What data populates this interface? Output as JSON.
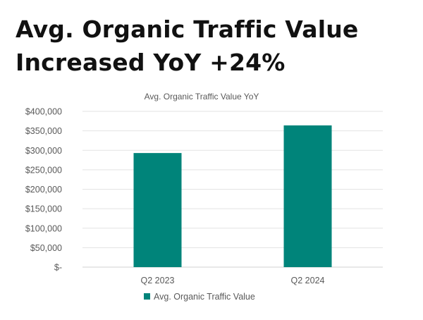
{
  "headline": {
    "line1": "Avg. Organic Traffic Value",
    "line2": "Increased YoY +24%"
  },
  "chart_data": {
    "type": "bar",
    "title": "Avg. Organic Traffic Value YoY",
    "categories": [
      "Q2 2023",
      "Q2 2024"
    ],
    "series": [
      {
        "name": "Avg. Organic Traffic Value",
        "values": [
          293000,
          364000
        ],
        "color": "#00847A"
      }
    ],
    "y_ticks": [
      0,
      50000,
      100000,
      150000,
      200000,
      250000,
      300000,
      350000,
      400000
    ],
    "y_tick_labels": [
      "$-",
      "$50,000",
      "$100,000",
      "$150,000",
      "$200,000",
      "$250,000",
      "$300,000",
      "$350,000",
      "$400,000"
    ],
    "ylim": [
      0,
      400000
    ],
    "xlabel": "",
    "ylabel": "",
    "grid": true,
    "legend_position": "bottom"
  }
}
